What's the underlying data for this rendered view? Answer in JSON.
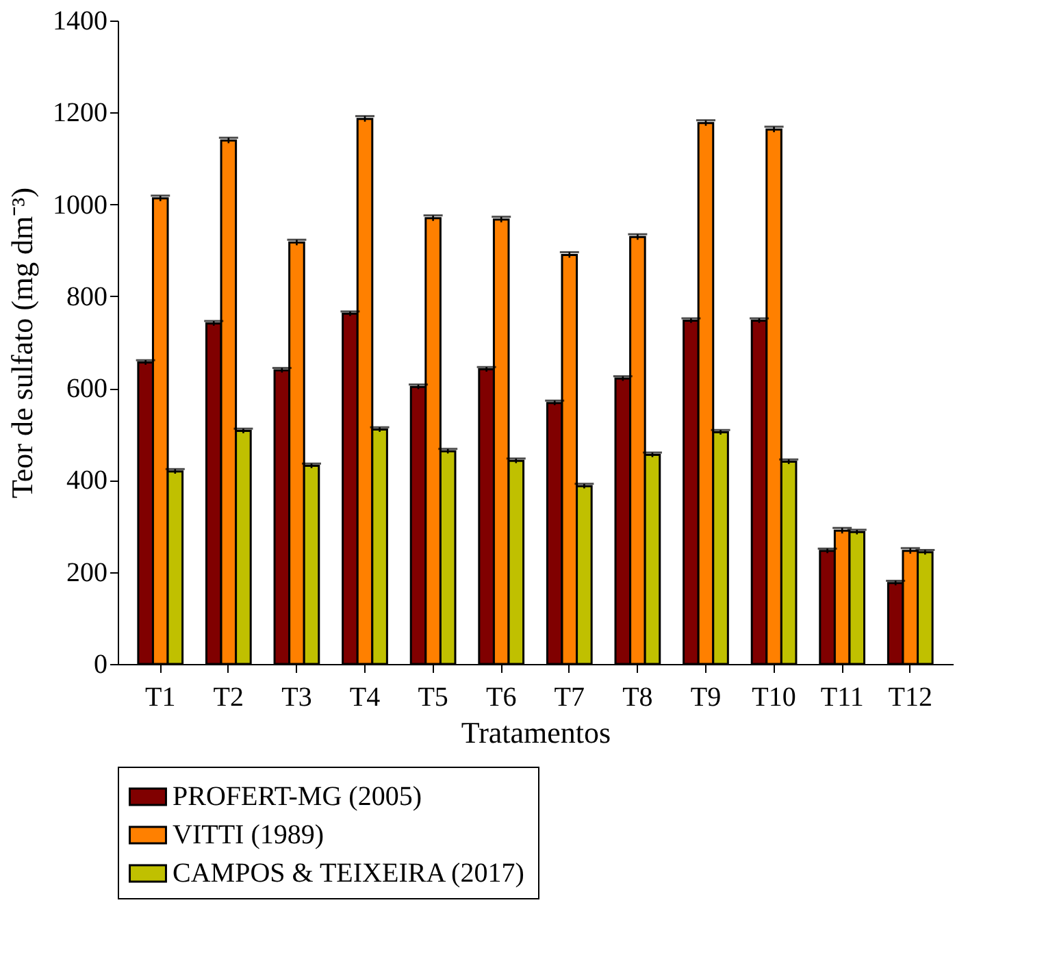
{
  "chart_data": {
    "type": "bar",
    "xlabel": "Tratamentos",
    "ylabel": "Teor de sulfato (mg dm⁻³)",
    "categories": [
      "T1",
      "T2",
      "T3",
      "T4",
      "T5",
      "T6",
      "T7",
      "T8",
      "T9",
      "T10",
      "T11",
      "T12"
    ],
    "series": [
      {
        "name": "PROFERT-MG (2005)",
        "color": "#800000",
        "values": [
          656,
          741,
          639,
          762,
          603,
          641,
          568,
          621,
          747,
          747,
          246,
          176
        ],
        "errors": [
          5,
          5,
          5,
          5,
          5,
          5,
          5,
          5,
          5,
          5,
          5,
          5
        ]
      },
      {
        "name": "VITTI (1989)",
        "color": "#ff8000",
        "values": [
          1013,
          1139,
          917,
          1186,
          970,
          967,
          890,
          929,
          1177,
          1163,
          290,
          246
        ],
        "errors": [
          6,
          6,
          6,
          6,
          6,
          6,
          6,
          6,
          6,
          6,
          6,
          6
        ]
      },
      {
        "name": "CAMPOS & TEIXEIRA (2017)",
        "color": "#c0c000",
        "values": [
          419,
          507,
          431,
          510,
          463,
          442,
          387,
          455,
          504,
          440,
          287,
          243
        ],
        "errors": [
          5,
          5,
          5,
          5,
          5,
          5,
          5,
          5,
          5,
          5,
          5,
          5
        ]
      }
    ],
    "ylim": [
      0,
      1400
    ],
    "yticks": [
      0,
      200,
      400,
      600,
      800,
      1000,
      1200,
      1400
    ],
    "grid": false,
    "legend": "bottom"
  }
}
